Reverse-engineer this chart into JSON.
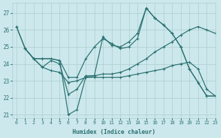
{
  "bg_color": "#cce8ec",
  "grid_color": "#aacccc",
  "line_color": "#2a7070",
  "xlabel": "Humidex (Indice chaleur)",
  "ylim": [
    20.8,
    27.6
  ],
  "xlim": [
    -0.5,
    23
  ],
  "yticks": [
    21,
    22,
    23,
    24,
    25,
    26,
    27
  ],
  "xticks": [
    0,
    1,
    2,
    3,
    4,
    5,
    6,
    7,
    8,
    9,
    10,
    11,
    12,
    13,
    14,
    15,
    16,
    17,
    18,
    19,
    20,
    21,
    22,
    23
  ],
  "series": [
    {
      "x": [
        0,
        1,
        2,
        3,
        4,
        5,
        6,
        7,
        8,
        9,
        10,
        11,
        12,
        13,
        14,
        15,
        16,
        17,
        18,
        19,
        20,
        21,
        22,
        23
      ],
      "y": [
        26.2,
        24.9,
        24.3,
        24.3,
        24.3,
        24.2,
        21.0,
        21.3,
        23.2,
        23.3,
        25.6,
        25.1,
        25.0,
        25.3,
        25.8,
        27.3,
        26.7,
        26.3,
        25.8,
        25.0,
        23.7,
        22.9,
        22.1,
        22.1
      ]
    },
    {
      "x": [
        1,
        2,
        3,
        4,
        5,
        6,
        7,
        8,
        9,
        10,
        11,
        12,
        13,
        14,
        15,
        16,
        17,
        18,
        19,
        20,
        21,
        22,
        23
      ],
      "y": [
        24.9,
        24.3,
        24.3,
        24.3,
        24.2,
        23.2,
        23.2,
        24.3,
        25.0,
        25.5,
        25.2,
        24.9,
        25.0,
        25.5,
        27.3,
        26.7,
        26.3,
        25.8,
        25.0,
        23.7,
        22.9,
        22.1,
        22.1
      ]
    },
    {
      "x": [
        0,
        1,
        2,
        3,
        4,
        5,
        6,
        7,
        8,
        9,
        10,
        11,
        12,
        13,
        14,
        15,
        16,
        17,
        18,
        19,
        20,
        21,
        22,
        23
      ],
      "y": [
        26.2,
        24.9,
        24.3,
        23.8,
        24.2,
        24.0,
        22.2,
        22.5,
        23.3,
        23.3,
        23.4,
        23.4,
        23.5,
        23.7,
        24.0,
        24.3,
        24.7,
        25.0,
        25.3,
        25.7,
        26.0,
        26.2,
        26.0,
        25.8
      ]
    },
    {
      "x": [
        1,
        2,
        3,
        4,
        5,
        6,
        7,
        8,
        9,
        10,
        11,
        12,
        13,
        14,
        15,
        16,
        17,
        18,
        19,
        20,
        21,
        22,
        23
      ],
      "y": [
        24.9,
        24.3,
        23.8,
        23.6,
        23.5,
        22.9,
        23.0,
        23.2,
        23.2,
        23.2,
        23.2,
        23.2,
        23.3,
        23.4,
        23.5,
        23.6,
        23.7,
        23.9,
        24.0,
        24.1,
        23.7,
        22.5,
        22.1
      ]
    }
  ]
}
